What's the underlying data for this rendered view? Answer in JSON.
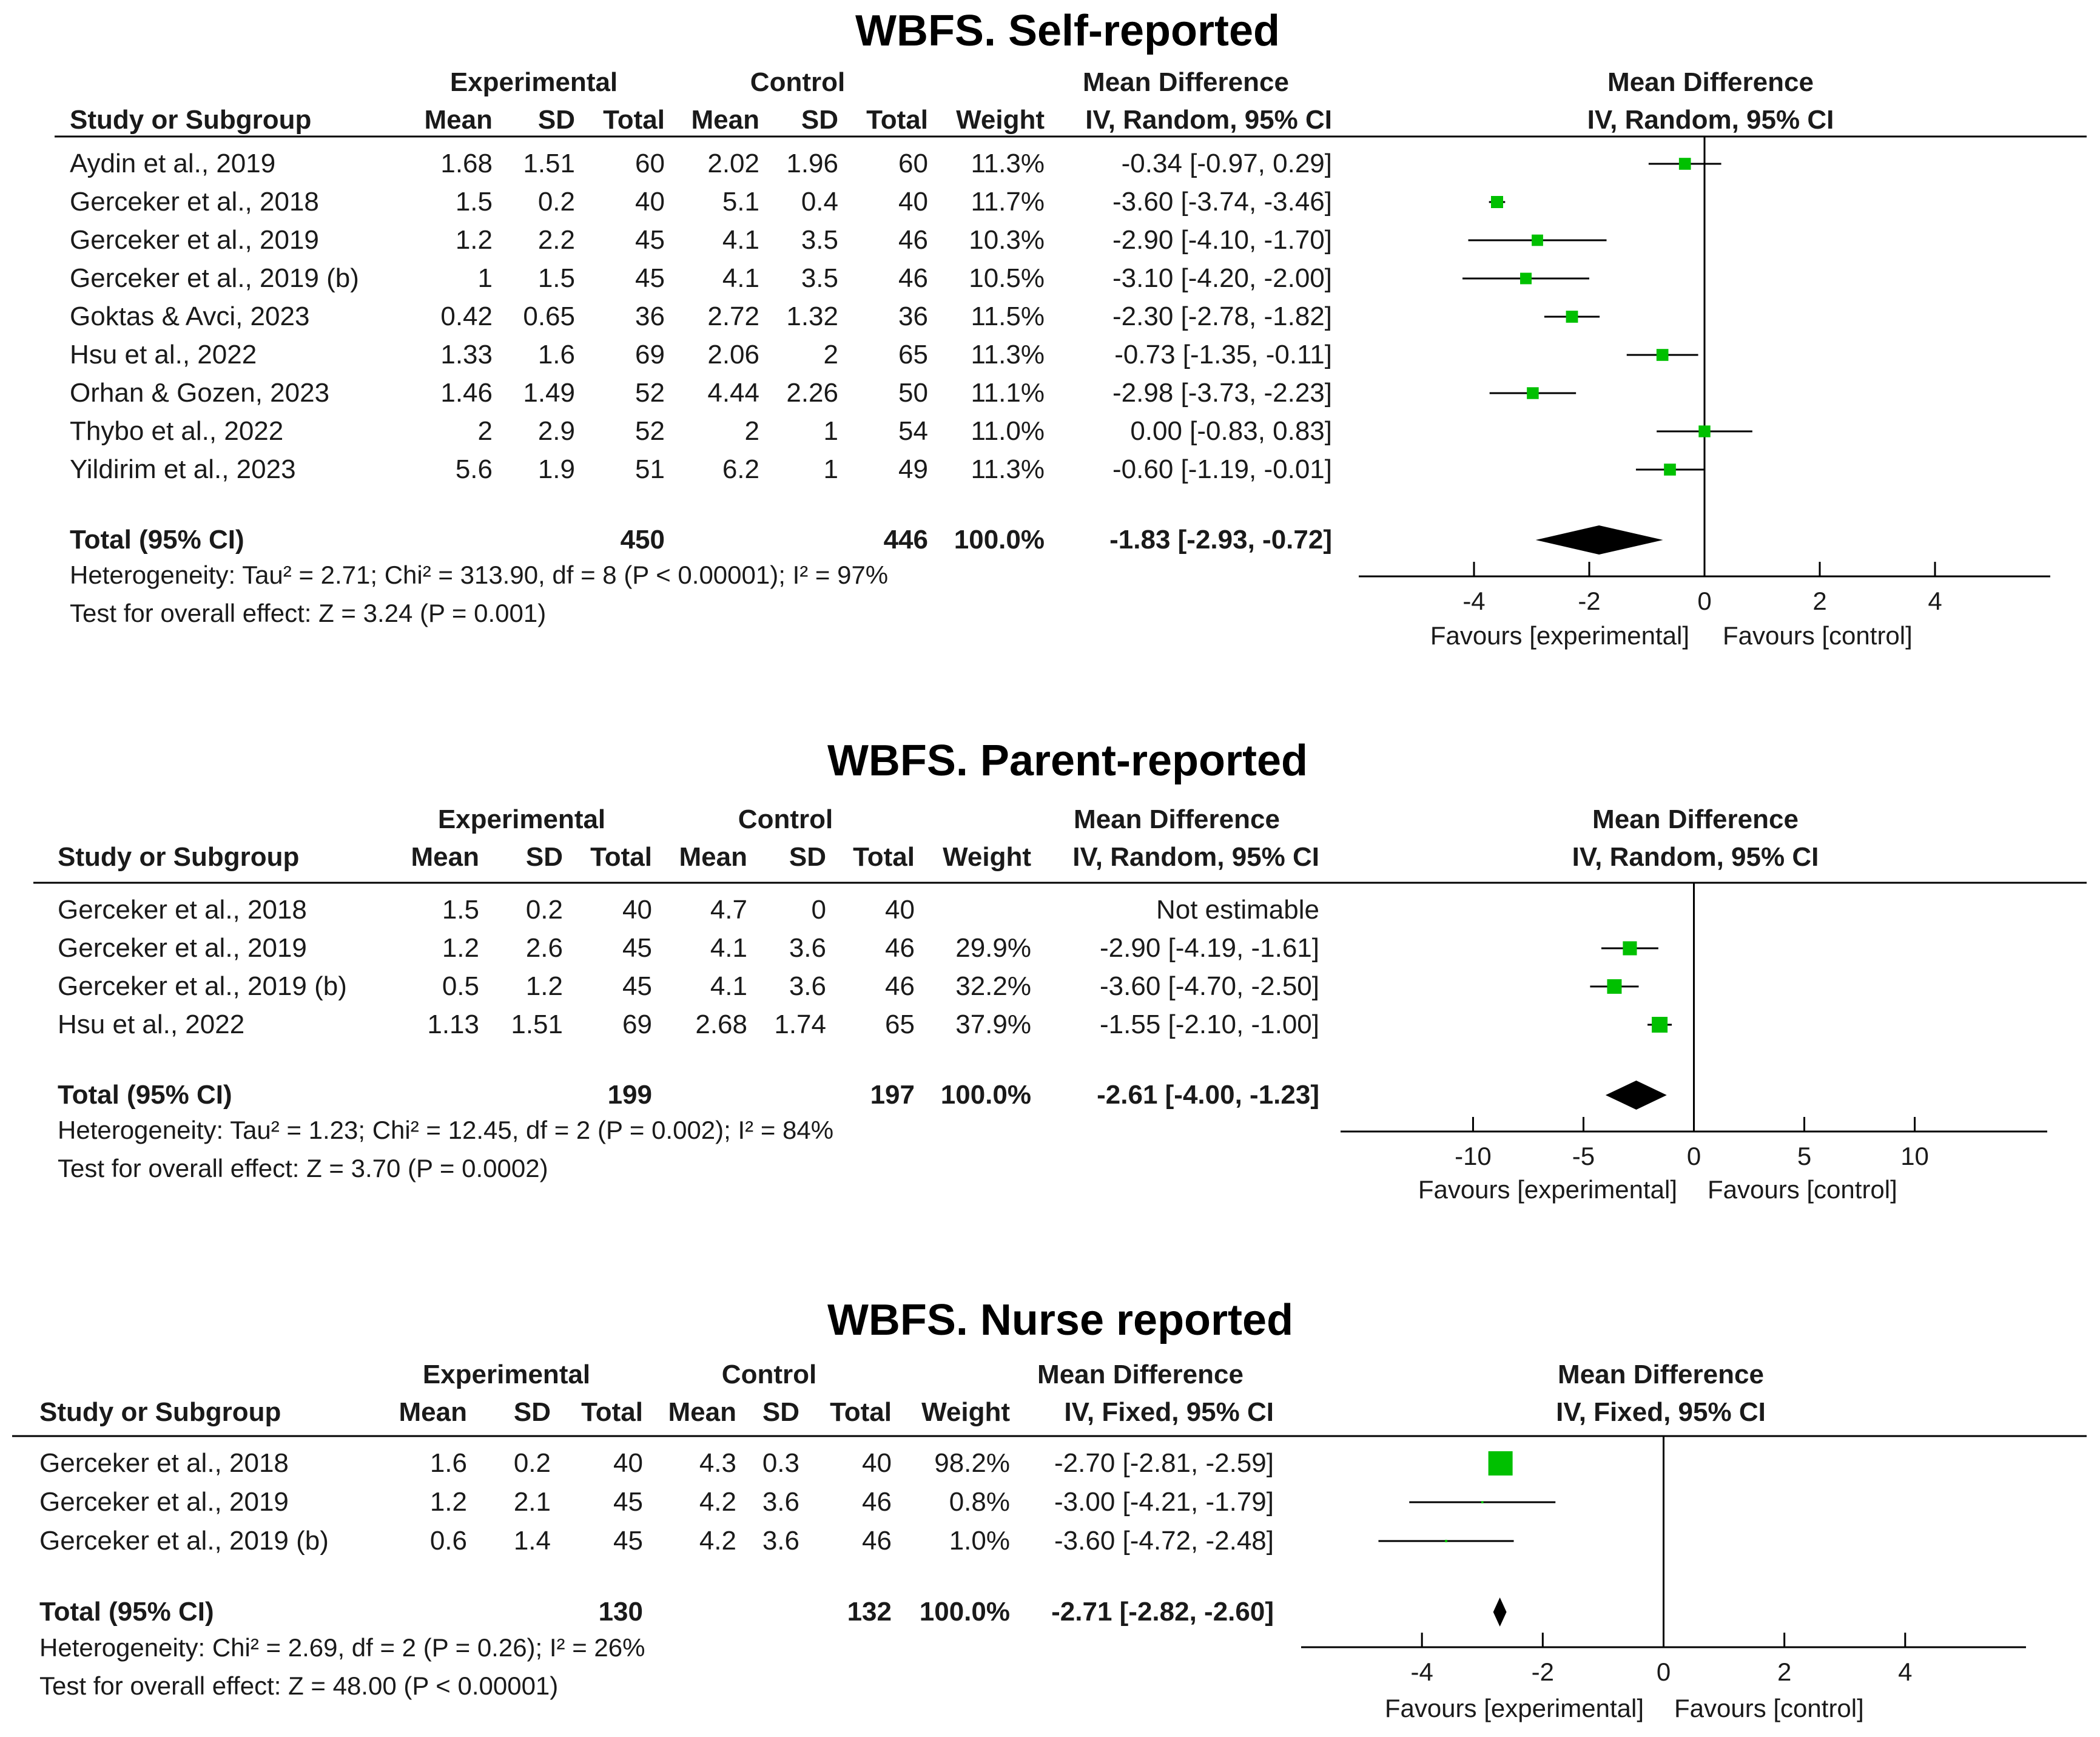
{
  "chart_data": [
    {
      "type": "forest",
      "title": "WBFS. Self-reported",
      "headers": {
        "experimental": "Experimental",
        "control": "Control",
        "md_left": "Mean Difference",
        "md_left_sub": "IV, Random, 95% CI",
        "md_right": "Mean Difference",
        "md_right_sub": "IV, Random, 95% CI",
        "study": "Study or Subgroup",
        "mean": "Mean",
        "sd": "SD",
        "total": "Total",
        "weight": "Weight"
      },
      "studies": [
        {
          "name": "Aydin et al., 2019",
          "e_mean": "1.68",
          "e_sd": "1.51",
          "e_total": "60",
          "c_mean": "2.02",
          "c_sd": "1.96",
          "c_total": "60",
          "weight": "11.3%",
          "ci_text": "-0.34 [-0.97, 0.29]",
          "md": -0.34,
          "lo": -0.97,
          "hi": 0.29,
          "w": 11.3
        },
        {
          "name": "Gerceker et al., 2018",
          "e_mean": "1.5",
          "e_sd": "0.2",
          "e_total": "40",
          "c_mean": "5.1",
          "c_sd": "0.4",
          "c_total": "40",
          "weight": "11.7%",
          "ci_text": "-3.60 [-3.74, -3.46]",
          "md": -3.6,
          "lo": -3.74,
          "hi": -3.46,
          "w": 11.7
        },
        {
          "name": "Gerceker et al., 2019",
          "e_mean": "1.2",
          "e_sd": "2.2",
          "e_total": "45",
          "c_mean": "4.1",
          "c_sd": "3.5",
          "c_total": "46",
          "weight": "10.3%",
          "ci_text": "-2.90 [-4.10, -1.70]",
          "md": -2.9,
          "lo": -4.1,
          "hi": -1.7,
          "w": 10.3
        },
        {
          "name": "Gerceker et al., 2019 (b)",
          "e_mean": "1",
          "e_sd": "1.5",
          "e_total": "45",
          "c_mean": "4.1",
          "c_sd": "3.5",
          "c_total": "46",
          "weight": "10.5%",
          "ci_text": "-3.10 [-4.20, -2.00]",
          "md": -3.1,
          "lo": -4.2,
          "hi": -2.0,
          "w": 10.5
        },
        {
          "name": "Goktas & Avci, 2023",
          "e_mean": "0.42",
          "e_sd": "0.65",
          "e_total": "36",
          "c_mean": "2.72",
          "c_sd": "1.32",
          "c_total": "36",
          "weight": "11.5%",
          "ci_text": "-2.30 [-2.78, -1.82]",
          "md": -2.3,
          "lo": -2.78,
          "hi": -1.82,
          "w": 11.5
        },
        {
          "name": "Hsu et al., 2022",
          "e_mean": "1.33",
          "e_sd": "1.6",
          "e_total": "69",
          "c_mean": "2.06",
          "c_sd": "2",
          "c_total": "65",
          "weight": "11.3%",
          "ci_text": "-0.73 [-1.35, -0.11]",
          "md": -0.73,
          "lo": -1.35,
          "hi": -0.11,
          "w": 11.3
        },
        {
          "name": "Orhan & Gozen, 2023",
          "e_mean": "1.46",
          "e_sd": "1.49",
          "e_total": "52",
          "c_mean": "4.44",
          "c_sd": "2.26",
          "c_total": "50",
          "weight": "11.1%",
          "ci_text": "-2.98 [-3.73, -2.23]",
          "md": -2.98,
          "lo": -3.73,
          "hi": -2.23,
          "w": 11.1
        },
        {
          "name": "Thybo et al., 2022",
          "e_mean": "2",
          "e_sd": "2.9",
          "e_total": "52",
          "c_mean": "2",
          "c_sd": "1",
          "c_total": "54",
          "weight": "11.0%",
          "ci_text": "0.00 [-0.83, 0.83]",
          "md": 0.0,
          "lo": -0.83,
          "hi": 0.83,
          "w": 11.0
        },
        {
          "name": "Yildirim et al., 2023",
          "e_mean": "5.6",
          "e_sd": "1.9",
          "e_total": "51",
          "c_mean": "6.2",
          "c_sd": "1",
          "c_total": "49",
          "weight": "11.3%",
          "ci_text": "-0.60 [-1.19, -0.01]",
          "md": -0.6,
          "lo": -1.19,
          "hi": -0.01,
          "w": 11.3
        }
      ],
      "total": {
        "label": "Total (95% CI)",
        "e_total": "450",
        "c_total": "446",
        "weight": "100.0%",
        "ci_text": "-1.83 [-2.93, -0.72]",
        "md": -1.83,
        "lo": -2.93,
        "hi": -0.72
      },
      "heterogeneity": "Heterogeneity: Tau² = 2.71; Chi² = 313.90, df = 8 (P < 0.00001); I² = 97%",
      "overall": "Test for overall effect: Z = 3.24 (P = 0.001)",
      "xlim": [
        -6,
        6
      ],
      "ticks": [
        -4,
        -2,
        0,
        2,
        4
      ],
      "tick_labels": [
        "-4",
        "-2",
        "0",
        "2",
        "4"
      ],
      "favours_left": "Favours [experimental]",
      "favours_right": "Favours [control]"
    },
    {
      "type": "forest",
      "title": "WBFS. Parent-reported",
      "headers": {
        "experimental": "Experimental",
        "control": "Control",
        "md_left": "Mean Difference",
        "md_left_sub": "IV, Random, 95% CI",
        "md_right": "Mean Difference",
        "md_right_sub": "IV, Random, 95% CI",
        "study": "Study or Subgroup",
        "mean": "Mean",
        "sd": "SD",
        "total": "Total",
        "weight": "Weight"
      },
      "studies": [
        {
          "name": "Gerceker et al., 2018",
          "e_mean": "1.5",
          "e_sd": "0.2",
          "e_total": "40",
          "c_mean": "4.7",
          "c_sd": "0",
          "c_total": "40",
          "weight": "",
          "ci_text": "Not estimable",
          "md": null,
          "lo": null,
          "hi": null,
          "w": 0
        },
        {
          "name": "Gerceker et al., 2019",
          "e_mean": "1.2",
          "e_sd": "2.6",
          "e_total": "45",
          "c_mean": "4.1",
          "c_sd": "3.6",
          "c_total": "46",
          "weight": "29.9%",
          "ci_text": "-2.90 [-4.19, -1.61]",
          "md": -2.9,
          "lo": -4.19,
          "hi": -1.61,
          "w": 29.9
        },
        {
          "name": "Gerceker et al., 2019 (b)",
          "e_mean": "0.5",
          "e_sd": "1.2",
          "e_total": "45",
          "c_mean": "4.1",
          "c_sd": "3.6",
          "c_total": "46",
          "weight": "32.2%",
          "ci_text": "-3.60 [-4.70, -2.50]",
          "md": -3.6,
          "lo": -4.7,
          "hi": -2.5,
          "w": 32.2
        },
        {
          "name": "Hsu et al., 2022",
          "e_mean": "1.13",
          "e_sd": "1.51",
          "e_total": "69",
          "c_mean": "2.68",
          "c_sd": "1.74",
          "c_total": "65",
          "weight": "37.9%",
          "ci_text": "-1.55 [-2.10, -1.00]",
          "md": -1.55,
          "lo": -2.1,
          "hi": -1.0,
          "w": 37.9
        }
      ],
      "total": {
        "label": "Total (95% CI)",
        "e_total": "199",
        "c_total": "197",
        "weight": "100.0%",
        "ci_text": "-2.61 [-4.00, -1.23]",
        "md": -2.61,
        "lo": -4.0,
        "hi": -1.23
      },
      "heterogeneity": "Heterogeneity: Tau² = 1.23; Chi² = 12.45, df = 2 (P = 0.002); I² = 84%",
      "overall": "Test for overall effect: Z = 3.70 (P = 0.0002)",
      "xlim": [
        -16,
        16
      ],
      "ticks": [
        -10,
        -5,
        0,
        5,
        10
      ],
      "tick_labels": [
        "-10",
        "-5",
        "0",
        "5",
        "10"
      ],
      "favours_left": "Favours [experimental]",
      "favours_right": "Favours [control]"
    },
    {
      "type": "forest",
      "title": "WBFS. Nurse reported",
      "headers": {
        "experimental": "Experimental",
        "control": "Control",
        "md_left": "Mean Difference",
        "md_left_sub": "IV, Fixed, 95% CI",
        "md_right": "Mean Difference",
        "md_right_sub": "IV, Fixed, 95% CI",
        "study": "Study or Subgroup",
        "mean": "Mean",
        "sd": "SD",
        "total": "Total",
        "weight": "Weight"
      },
      "studies": [
        {
          "name": "Gerceker et al., 2018",
          "e_mean": "1.6",
          "e_sd": "0.2",
          "e_total": "40",
          "c_mean": "4.3",
          "c_sd": "0.3",
          "c_total": "40",
          "weight": "98.2%",
          "ci_text": "-2.70 [-2.81, -2.59]",
          "md": -2.7,
          "lo": -2.81,
          "hi": -2.59,
          "w": 98.2
        },
        {
          "name": "Gerceker et al., 2019",
          "e_mean": "1.2",
          "e_sd": "2.1",
          "e_total": "45",
          "c_mean": "4.2",
          "c_sd": "3.6",
          "c_total": "46",
          "weight": "0.8%",
          "ci_text": "-3.00 [-4.21, -1.79]",
          "md": -3.0,
          "lo": -4.21,
          "hi": -1.79,
          "w": 0.8
        },
        {
          "name": "Gerceker et al., 2019 (b)",
          "e_mean": "0.6",
          "e_sd": "1.4",
          "e_total": "45",
          "c_mean": "4.2",
          "c_sd": "3.6",
          "c_total": "46",
          "weight": "1.0%",
          "ci_text": "-3.60 [-4.72, -2.48]",
          "md": -3.6,
          "lo": -4.72,
          "hi": -2.48,
          "w": 1.0
        }
      ],
      "total": {
        "label": "Total (95% CI)",
        "e_total": "130",
        "c_total": "132",
        "weight": "100.0%",
        "ci_text": "-2.71 [-2.82, -2.60]",
        "md": -2.71,
        "lo": -2.82,
        "hi": -2.6
      },
      "heterogeneity": "Heterogeneity: Chi² = 2.69, df = 2 (P = 0.26); I² = 26%",
      "overall": "Test for overall effect: Z = 48.00 (P < 0.00001)",
      "xlim": [
        -6,
        6
      ],
      "ticks": [
        -4,
        -2,
        0,
        2,
        4
      ],
      "tick_labels": [
        "-4",
        "-2",
        "0",
        "2",
        "4"
      ],
      "favours_left": "Favours [experimental]",
      "favours_right": "Favours [control]"
    }
  ],
  "colors": {
    "marker": "#00c000",
    "diamond": "#000000",
    "line": "#000000"
  }
}
